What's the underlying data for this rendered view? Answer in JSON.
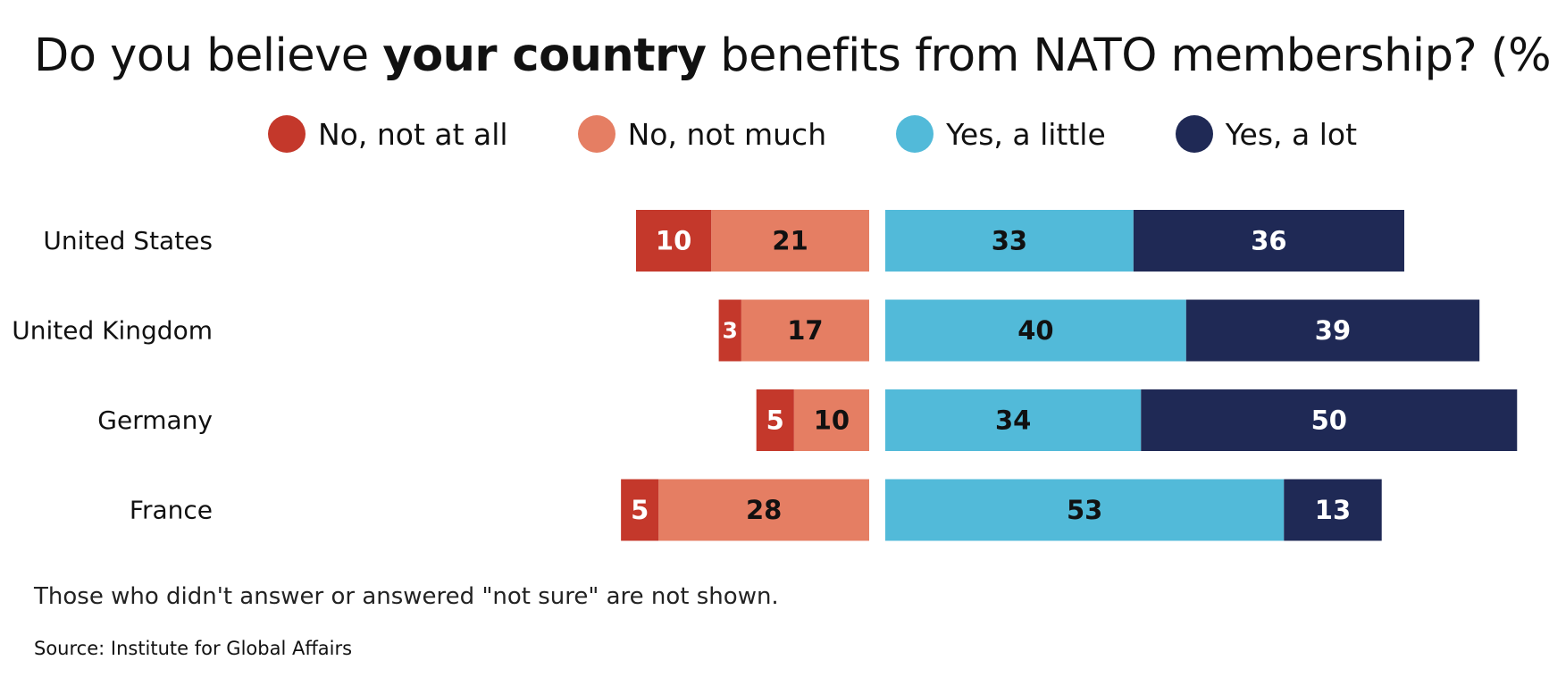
{
  "title": {
    "prefix": "Do you believe ",
    "emphasis": "your country",
    "suffix": " benefits from NATO membership? (%)"
  },
  "legend": [
    {
      "label": "No, not at all",
      "color": "#c4382b"
    },
    {
      "label": "No, not much",
      "color": "#e57e63"
    },
    {
      "label": "Yes, a little",
      "color": "#52bad9"
    },
    {
      "label": "Yes, a lot",
      "color": "#1f2955"
    }
  ],
  "chart_data": {
    "type": "bar",
    "orientation": "horizontal",
    "stacking": "diverging",
    "title": "Do you believe your country benefits from NATO membership? (%)",
    "categories": [
      "United States",
      "United Kingdom",
      "Germany",
      "France"
    ],
    "series": [
      {
        "name": "No, not at all",
        "side": "negative",
        "color": "#c4382b",
        "label_color": "#ffffff",
        "values": [
          10,
          3,
          5,
          5
        ]
      },
      {
        "name": "No, not much",
        "side": "negative",
        "color": "#e57e63",
        "label_color": "#111111",
        "values": [
          21,
          17,
          10,
          28
        ]
      },
      {
        "name": "Yes, a little",
        "side": "positive",
        "color": "#52bad9",
        "label_color": "#111111",
        "values": [
          33,
          40,
          34,
          53
        ]
      },
      {
        "name": "Yes, a lot",
        "side": "positive",
        "color": "#1f2955",
        "label_color": "#ffffff",
        "values": [
          36,
          39,
          50,
          13
        ]
      }
    ],
    "data_labels": true,
    "grid": false,
    "legend_position": "top"
  },
  "footnote": "Those who didn't answer or answered \"not sure\" are not shown.",
  "source": "Source: Institute for Global Affairs"
}
